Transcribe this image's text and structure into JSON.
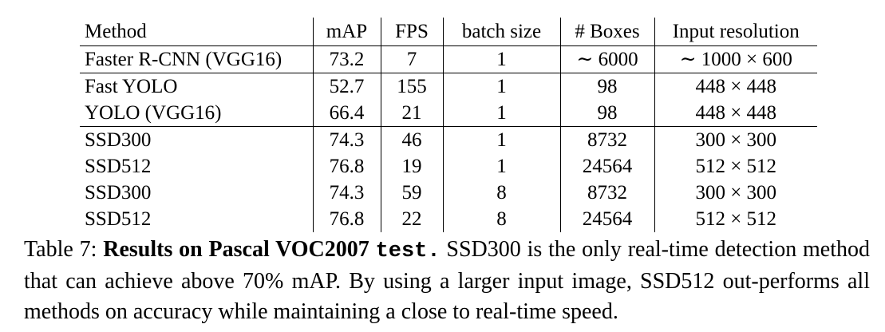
{
  "table": {
    "headers": [
      "Method",
      "mAP",
      "FPS",
      "batch size",
      "# Boxes",
      "Input resolution"
    ],
    "rows": [
      [
        "Faster R-CNN (VGG16)",
        "73.2",
        "7",
        "1",
        "∼ 6000",
        "∼ 1000 × 600"
      ],
      [
        "Fast YOLO",
        "52.7",
        "155",
        "1",
        "98",
        "448 × 448"
      ],
      [
        "YOLO (VGG16)",
        "66.4",
        "21",
        "1",
        "98",
        "448 × 448"
      ],
      [
        "SSD300",
        "74.3",
        "46",
        "1",
        "8732",
        "300 × 300"
      ],
      [
        "SSD512",
        "76.8",
        "19",
        "1",
        "24564",
        "512 × 512"
      ],
      [
        "SSD300",
        "74.3",
        "59",
        "8",
        "8732",
        "300 × 300"
      ],
      [
        "SSD512",
        "76.8",
        "22",
        "8",
        "24564",
        "512 × 512"
      ]
    ]
  },
  "caption": {
    "label": "Table 7:",
    "title": "Results on Pascal VOC2007",
    "title_mono": "test.",
    "body": "SSD300 is the only real-time detection method that can achieve above 70% mAP. By using a larger input image, SSD512 out-performs all methods on accuracy while maintaining a close to real-time speed."
  }
}
